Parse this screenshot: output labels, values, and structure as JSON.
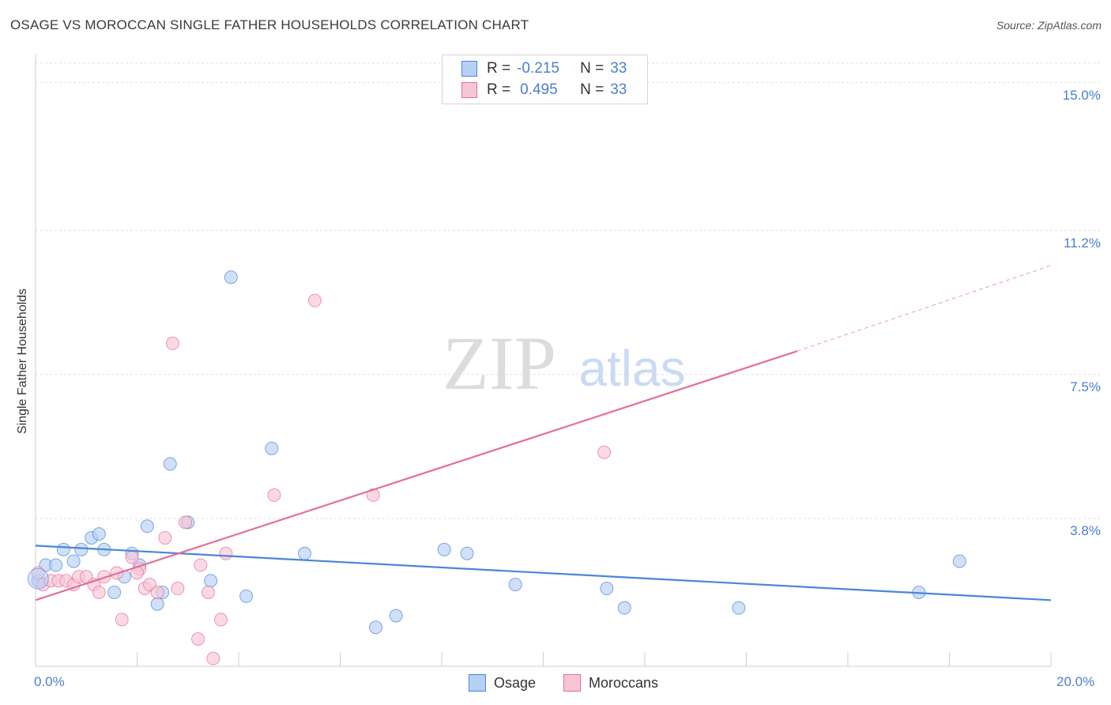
{
  "chart_data": {
    "type": "scatter",
    "title": "OSAGE VS MOROCCAN SINGLE FATHER HOUSEHOLDS CORRELATION CHART",
    "source": "Source: ZipAtlas.com",
    "xlabel": "",
    "ylabel": "Single Father Households",
    "xlim": [
      0,
      20
    ],
    "ylim": [
      0,
      15.5
    ],
    "x_tick_labels": [
      "0.0%",
      "20.0%"
    ],
    "y_ticks": [
      {
        "value": 15.0,
        "label": "15.0%"
      },
      {
        "value": 11.2,
        "label": "11.2%"
      },
      {
        "value": 7.5,
        "label": "7.5%"
      },
      {
        "value": 3.8,
        "label": "3.8%"
      }
    ],
    "grid": true,
    "watermark": {
      "zip": "ZIP",
      "atlas": "atlas"
    },
    "legend": {
      "stats": [
        {
          "r_label": "R =",
          "r_value": "-0.215",
          "n_label": "N =",
          "n_value": "33"
        },
        {
          "r_label": "R =",
          "r_value": "0.495",
          "n_label": "N =",
          "n_value": "33"
        }
      ],
      "entries": [
        "Osage",
        "Moroccans"
      ]
    },
    "series": [
      {
        "name": "Osage",
        "color": "#4a86d8",
        "fill": "#b7d0f5",
        "points": [
          [
            0.05,
            2.2
          ],
          [
            0.2,
            2.6
          ],
          [
            0.4,
            2.6
          ],
          [
            0.55,
            3.0
          ],
          [
            0.75,
            2.7
          ],
          [
            0.9,
            3.0
          ],
          [
            1.1,
            3.3
          ],
          [
            1.25,
            3.4
          ],
          [
            1.35,
            3.0
          ],
          [
            1.55,
            1.9
          ],
          [
            1.75,
            2.3
          ],
          [
            1.9,
            2.9
          ],
          [
            2.05,
            2.6
          ],
          [
            2.2,
            3.6
          ],
          [
            2.4,
            1.6
          ],
          [
            2.5,
            1.9
          ],
          [
            2.65,
            5.2
          ],
          [
            3.0,
            3.7
          ],
          [
            3.45,
            2.2
          ],
          [
            3.85,
            10.0
          ],
          [
            4.15,
            1.8
          ],
          [
            4.65,
            5.6
          ],
          [
            5.3,
            2.9
          ],
          [
            6.7,
            1.0
          ],
          [
            7.1,
            1.3
          ],
          [
            8.05,
            3.0
          ],
          [
            8.5,
            2.9
          ],
          [
            9.45,
            2.1
          ],
          [
            11.25,
            2.0
          ],
          [
            11.6,
            1.5
          ],
          [
            13.85,
            1.5
          ],
          [
            17.4,
            1.9
          ],
          [
            18.2,
            2.7
          ]
        ],
        "trend": {
          "x0": 0,
          "y0": 3.1,
          "x1": 20,
          "y1": 1.7
        }
      },
      {
        "name": "Moroccans",
        "color": "#e46f96",
        "fill": "#f8c5d5",
        "points": [
          [
            0.05,
            2.4
          ],
          [
            0.15,
            2.1
          ],
          [
            0.3,
            2.2
          ],
          [
            0.45,
            2.2
          ],
          [
            0.6,
            2.2
          ],
          [
            0.75,
            2.1
          ],
          [
            0.85,
            2.3
          ],
          [
            1.0,
            2.3
          ],
          [
            1.15,
            2.1
          ],
          [
            1.25,
            1.9
          ],
          [
            1.35,
            2.3
          ],
          [
            1.6,
            2.4
          ],
          [
            1.7,
            1.2
          ],
          [
            1.9,
            2.8
          ],
          [
            2.05,
            2.5
          ],
          [
            2.15,
            2.0
          ],
          [
            2.25,
            2.1
          ],
          [
            2.4,
            1.9
          ],
          [
            2.55,
            3.3
          ],
          [
            2.7,
            8.3
          ],
          [
            2.8,
            2.0
          ],
          [
            2.95,
            3.7
          ],
          [
            3.2,
            0.7
          ],
          [
            3.25,
            2.6
          ],
          [
            3.4,
            1.9
          ],
          [
            3.5,
            0.2
          ],
          [
            3.65,
            1.2
          ],
          [
            3.75,
            2.9
          ],
          [
            4.7,
            4.4
          ],
          [
            5.5,
            9.4
          ],
          [
            6.65,
            4.4
          ],
          [
            11.2,
            5.5
          ],
          [
            2.0,
            2.4
          ]
        ],
        "trend": {
          "x0": 0,
          "y0": 1.7,
          "x1": 15.0,
          "y1": 8.1,
          "dash_to_x": 20.0,
          "dash_to_y": 10.3
        }
      }
    ]
  }
}
